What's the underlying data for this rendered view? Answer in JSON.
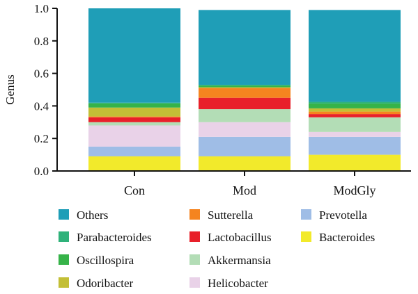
{
  "chart_data": {
    "type": "bar",
    "stacked": true,
    "categories": [
      "Con",
      "Mod",
      "ModGly"
    ],
    "ylabel": "Genus",
    "ylim": [
      0,
      1.0
    ],
    "yticks": [
      "0.0",
      "0.2",
      "0.4",
      "0.6",
      "0.8",
      "1.0"
    ],
    "grid": false,
    "legend_position": "bottom",
    "series": [
      {
        "name": "Bacteroides",
        "color": "#f2ea2b",
        "values": [
          0.09,
          0.09,
          0.1
        ]
      },
      {
        "name": "Prevotella",
        "color": "#9fbde6",
        "values": [
          0.06,
          0.12,
          0.11
        ]
      },
      {
        "name": "Helicobacter",
        "color": "#e9d2e8",
        "values": [
          0.13,
          0.09,
          0.03
        ]
      },
      {
        "name": "Akkermansia",
        "color": "#b3ddb6",
        "values": [
          0.02,
          0.08,
          0.09
        ]
      },
      {
        "name": "Lactobacillus",
        "color": "#e8202a",
        "values": [
          0.03,
          0.07,
          0.02
        ]
      },
      {
        "name": "Sutterella",
        "color": "#f5841f",
        "values": [
          0.005,
          0.06,
          0.015
        ]
      },
      {
        "name": "Odoribacter",
        "color": "#c3bf36",
        "values": [
          0.055,
          0.005,
          0.02
        ]
      },
      {
        "name": "Oscillospira",
        "color": "#36b349",
        "values": [
          0.025,
          0.01,
          0.03
        ]
      },
      {
        "name": "Parabacteroides",
        "color": "#2fb27a",
        "values": [
          0.005,
          0.005,
          0.01
        ]
      },
      {
        "name": "Others",
        "color": "#1f9eb7",
        "values": [
          0.58,
          0.46,
          0.565
        ]
      }
    ],
    "legend_order": [
      [
        "Others",
        "Sutterella",
        "Prevotella"
      ],
      [
        "Parabacteroides",
        "Lactobacillus",
        "Bacteroides"
      ],
      [
        "Oscillospira",
        "Akkermansia"
      ],
      [
        "Odoribacter",
        "Helicobacter"
      ]
    ]
  }
}
